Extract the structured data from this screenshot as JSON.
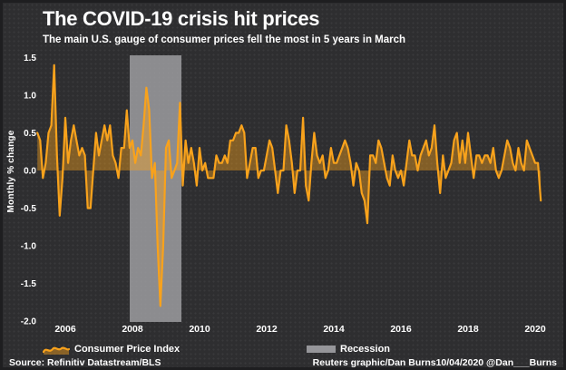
{
  "header": {
    "title": "The COVID-19 crisis hit prices",
    "subtitle": "The main U.S. gauge of consumer prices fell the most in 5 years in March"
  },
  "legend": {
    "cpi_label": "Consumer Price Index",
    "recession_label": "Recession"
  },
  "footer": {
    "source": "Source: Refinitiv Datastream/BLS",
    "credit": "Reuters graphic/Dan Burns10/04/2020 @Dan___Burns"
  },
  "colors": {
    "background": "#2E2E30",
    "text": "#FFFFFF",
    "line": "#F8A21C",
    "area_fill": "#F8A21C",
    "recession_band": "#A4A4A8"
  },
  "chart_data": {
    "type": "area",
    "title": "The COVID-19 crisis hit prices",
    "subtitle": "The main U.S. gauge of consumer prices fell the most in 5 years in March",
    "ylabel": "Monthly % change",
    "xlabel": "",
    "grid": false,
    "legend_position": "bottom",
    "ylim": [
      -2.0,
      1.5
    ],
    "y_ticks": [
      1.5,
      1.0,
      0.5,
      0.0,
      -0.5,
      -1.0,
      -1.5,
      -2.0
    ],
    "x_tick_years": [
      2006,
      2008,
      2010,
      2012,
      2014,
      2016,
      2018,
      2020
    ],
    "x_start": "2005-03",
    "x_end": "2020-03",
    "frequency": "monthly",
    "recession_band": {
      "start_year": 2007.92,
      "end_year": 2009.46,
      "label": "Recession"
    },
    "series": [
      {
        "name": "Consumer Price Index",
        "values": [
          0.5,
          0.4,
          -0.1,
          0.1,
          0.5,
          0.6,
          1.4,
          0.2,
          -0.6,
          -0.1,
          0.7,
          0.1,
          0.4,
          0.6,
          0.4,
          0.2,
          0.3,
          0.2,
          -0.5,
          -0.5,
          0.0,
          0.5,
          0.2,
          0.4,
          0.6,
          0.4,
          0.6,
          0.2,
          0.1,
          -0.1,
          0.3,
          0.3,
          0.8,
          0.3,
          0.4,
          0.1,
          0.3,
          0.2,
          0.6,
          1.1,
          0.8,
          -0.1,
          0.1,
          -1.0,
          -1.8,
          -1.0,
          0.3,
          0.4,
          -0.1,
          0.0,
          0.1,
          0.9,
          -0.2,
          0.4,
          0.1,
          0.3,
          0.1,
          -0.2,
          0.3,
          0.0,
          0.1,
          -0.1,
          -0.1,
          -0.1,
          0.2,
          0.1,
          0.1,
          0.2,
          0.1,
          0.4,
          0.4,
          0.5,
          0.5,
          0.6,
          0.5,
          -0.1,
          0.1,
          0.3,
          0.3,
          -0.1,
          0.0,
          0.0,
          0.2,
          0.4,
          0.3,
          0.0,
          -0.3,
          0.0,
          0.0,
          0.6,
          0.4,
          0.1,
          -0.3,
          0.0,
          0.0,
          0.7,
          -0.2,
          -0.4,
          0.1,
          0.5,
          0.2,
          0.1,
          0.2,
          -0.1,
          0.0,
          0.3,
          0.1,
          0.1,
          0.2,
          0.3,
          0.4,
          0.3,
          0.1,
          -0.2,
          0.1,
          0.0,
          -0.3,
          -0.4,
          -0.7,
          0.2,
          0.2,
          0.1,
          0.4,
          0.3,
          0.1,
          -0.1,
          -0.2,
          0.2,
          0.0,
          -0.1,
          0.0,
          -0.2,
          0.1,
          0.4,
          0.2,
          0.2,
          0.0,
          0.2,
          0.3,
          0.4,
          0.2,
          0.3,
          0.6,
          0.1,
          -0.3,
          0.2,
          -0.1,
          0.0,
          0.1,
          0.4,
          0.5,
          0.1,
          0.4,
          0.1,
          0.5,
          0.2,
          -0.1,
          0.2,
          0.2,
          0.1,
          0.2,
          0.2,
          0.1,
          0.3,
          0.0,
          -0.1,
          0.0,
          0.2,
          0.4,
          0.3,
          0.1,
          0.0,
          0.3,
          0.1,
          0.0,
          0.4,
          0.3,
          0.2,
          0.1,
          0.1,
          -0.4
        ]
      }
    ]
  }
}
